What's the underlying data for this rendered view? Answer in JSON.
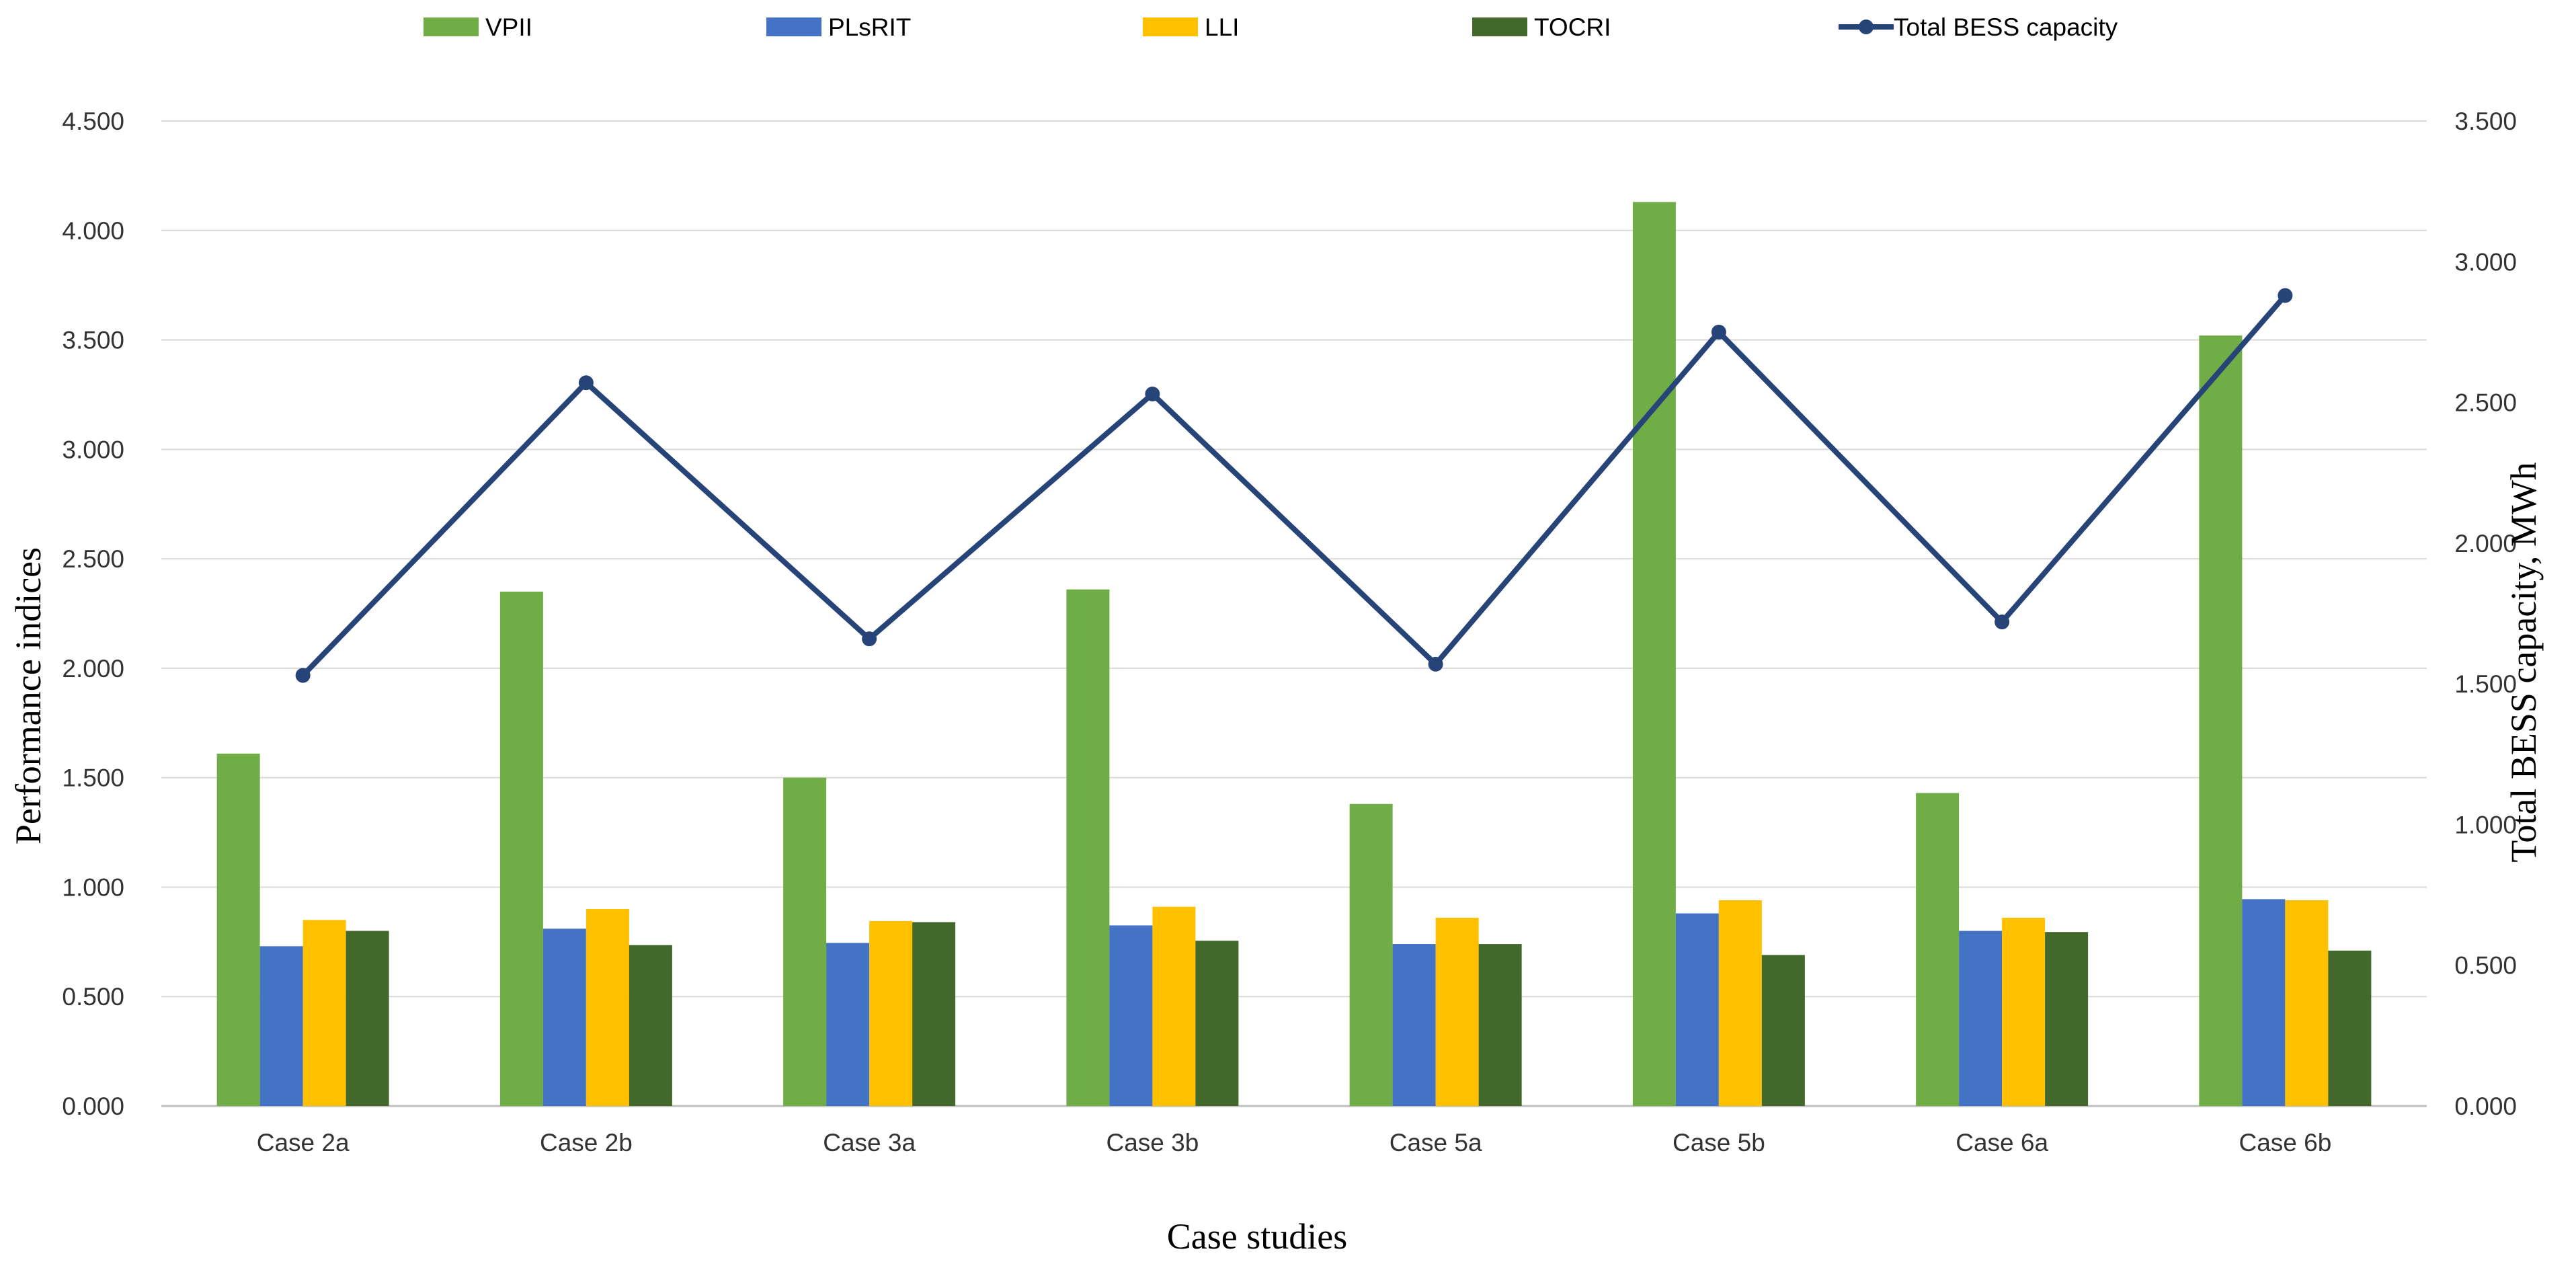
{
  "chart_data": {
    "type": "bar",
    "title": "",
    "xlabel": "Case studies",
    "ylabel": "Performance indices",
    "y2label": "Total BESS capacity, MWh",
    "categories": [
      "Case 2a",
      "Case 2b",
      "Case 3a",
      "Case 3b",
      "Case 5a",
      "Case 5b",
      "Case 6a",
      "Case 6b"
    ],
    "ylim": [
      0,
      4.5
    ],
    "y2lim": [
      0,
      3.5
    ],
    "yticks": [
      "0.000",
      "0.500",
      "1.000",
      "1.500",
      "2.000",
      "2.500",
      "3.000",
      "3.500",
      "4.000",
      "4.500"
    ],
    "y2ticks": [
      "0.000",
      "0.500",
      "1.000",
      "1.500",
      "2.000",
      "2.500",
      "3.000",
      "3.500"
    ],
    "grid": true,
    "legend_position": "top",
    "series": [
      {
        "name": "VPII",
        "kind": "bar",
        "axis": "left",
        "color": "#70ad47",
        "values": [
          1.61,
          2.35,
          1.5,
          2.36,
          1.38,
          4.13,
          1.43,
          3.52
        ]
      },
      {
        "name": "PLsRIT",
        "kind": "bar",
        "axis": "left",
        "color": "#4472c4",
        "values": [
          0.73,
          0.81,
          0.745,
          0.825,
          0.74,
          0.88,
          0.8,
          0.945
        ]
      },
      {
        "name": "LLI",
        "kind": "bar",
        "axis": "left",
        "color": "#ffc000",
        "values": [
          0.85,
          0.9,
          0.845,
          0.91,
          0.86,
          0.94,
          0.86,
          0.94
        ]
      },
      {
        "name": "TOCRI",
        "kind": "bar",
        "axis": "left",
        "color": "#43682b",
        "values": [
          0.8,
          0.735,
          0.84,
          0.755,
          0.74,
          0.69,
          0.795,
          0.71
        ]
      },
      {
        "name": "Total BESS capacity",
        "kind": "line",
        "axis": "right",
        "color": "#264478",
        "values": [
          1.53,
          2.57,
          1.66,
          2.53,
          1.57,
          2.75,
          1.72,
          2.88
        ]
      }
    ]
  }
}
